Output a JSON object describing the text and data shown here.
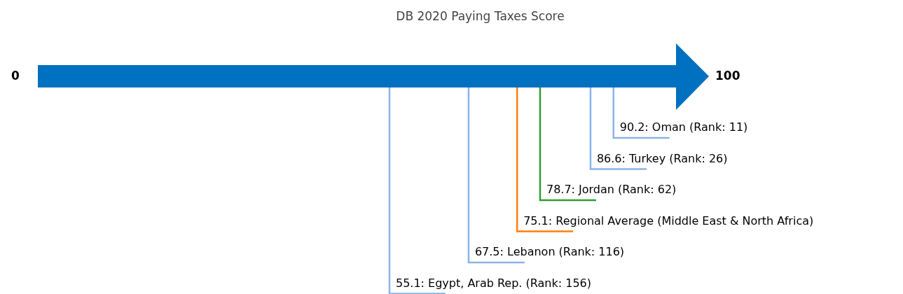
{
  "chart_data": {
    "type": "other",
    "title": "DB 2020 Paying Taxes Score",
    "categories": [
      ": Oman (Rank: 11)",
      ": Turkey (Rank: 26)",
      ": Jordan (Rank: 62)",
      ": Regional Average (Middle East & North Africa)",
      ": Lebanon (Rank: 116)",
      ": Egypt, Arab Rep. (Rank: 156)"
    ],
    "values": [
      90.2,
      86.6,
      78.7,
      75.1,
      67.5,
      55.1
    ],
    "data_labels": true,
    "colors": [
      "#8ab4e8",
      "#8ab4e8",
      "#2ca02c",
      "#ff7f0e",
      "#8ab4e8",
      "#8ab4e8"
    ],
    "annotations": [
      "0",
      "100"
    ]
  }
}
